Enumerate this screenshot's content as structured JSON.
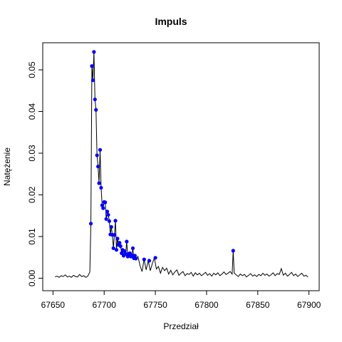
{
  "chart_data": {
    "type": "line",
    "title": "Impuls",
    "x_label": "Przedział",
    "y_label": "Natężenie",
    "xlim": [
      67640,
      67910
    ],
    "ylim": [
      -0.003,
      0.0565
    ],
    "xticks": [
      67650,
      67700,
      67750,
      67800,
      67850,
      67900
    ],
    "yticks": [
      {
        "value": 0,
        "label": "0.00"
      },
      0.01,
      0.02,
      0.03,
      0.04,
      0.05
    ],
    "line": {
      "color": "#000000",
      "x": [
        67652,
        67654,
        67656,
        67658,
        67660,
        67662,
        67664,
        67666,
        67668,
        67670,
        67672,
        67674,
        67676,
        67678,
        67680,
        67682,
        67684,
        67686,
        67687,
        67688,
        67689,
        67690,
        67691,
        67692,
        67693,
        67694,
        67695,
        67696,
        67697,
        67698,
        67699,
        67700,
        67701,
        67702,
        67703,
        67704,
        67705,
        67706,
        67707,
        67708,
        67709,
        67710,
        67711,
        67712,
        67713,
        67714,
        67715,
        67716,
        67717,
        67718,
        67719,
        67720,
        67721,
        67722,
        67723,
        67724,
        67725,
        67726,
        67727,
        67728,
        67729,
        67730,
        67731,
        67733,
        67735,
        67737,
        67739,
        67741,
        67743,
        67745,
        67747,
        67749,
        67751,
        67753,
        67755,
        67757,
        67759,
        67761,
        67763,
        67765,
        67767,
        67769,
        67771,
        67773,
        67775,
        67777,
        67779,
        67781,
        67783,
        67785,
        67787,
        67789,
        67791,
        67793,
        67795,
        67797,
        67799,
        67801,
        67803,
        67805,
        67807,
        67809,
        67811,
        67813,
        67815,
        67817,
        67819,
        67821,
        67823,
        67825,
        67826,
        67827,
        67829,
        67831,
        67833,
        67835,
        67837,
        67839,
        67841,
        67843,
        67845,
        67847,
        67849,
        67851,
        67853,
        67855,
        67857,
        67859,
        67861,
        67863,
        67865,
        67867,
        67869,
        67871,
        67873,
        67875,
        67877,
        67879,
        67881,
        67883,
        67885,
        67887,
        67889,
        67891,
        67893,
        67895,
        67897,
        67899
      ],
      "values": [
        0.0003,
        0.0005,
        0.0002,
        0.0006,
        0.0004,
        0.0008,
        0.0003,
        0.0005,
        0.0002,
        0.0007,
        0.0004,
        0.0003,
        0.0009,
        0.0004,
        0.0006,
        0.0002,
        0.0005,
        0.0015,
        0.0131,
        0.0509,
        0.0475,
        0.0543,
        0.0429,
        0.0404,
        0.0295,
        0.0268,
        0.0228,
        0.0308,
        0.0217,
        0.0175,
        0.0168,
        0.0183,
        0.0182,
        0.0142,
        0.016,
        0.0152,
        0.0137,
        0.0105,
        0.0123,
        0.0104,
        0.0072,
        0.0104,
        0.0138,
        0.0068,
        0.0095,
        0.008,
        0.0085,
        0.0077,
        0.006,
        0.0068,
        0.0054,
        0.0065,
        0.0058,
        0.0088,
        0.0052,
        0.0058,
        0.006,
        0.0052,
        0.0055,
        0.0072,
        0.0048,
        0.0054,
        0.0047,
        0.0052,
        0.003,
        0.0016,
        0.0045,
        0.002,
        0.0042,
        0.0018,
        0.0035,
        0.0049,
        0.0022,
        0.0028,
        0.0012,
        0.0026,
        0.0018,
        0.0024,
        0.001,
        0.0019,
        0.0008,
        0.0015,
        0.002,
        0.0007,
        0.0012,
        0.0016,
        0.0006,
        0.0011,
        0.0009,
        0.0014,
        0.0005,
        0.0013,
        0.0008,
        0.0012,
        0.0006,
        0.001,
        0.0014,
        0.0007,
        0.0011,
        0.0005,
        0.0012,
        0.0008,
        0.0013,
        0.0006,
        0.001,
        0.0015,
        0.0009,
        0.0012,
        0.0016,
        0.001,
        0.0066,
        0.0012,
        0.0008,
        0.0004,
        0.001,
        0.0006,
        0.0009,
        0.0003,
        0.0007,
        0.0011,
        0.0005,
        0.0008,
        0.0004,
        0.0009,
        0.0006,
        0.0012,
        0.0007,
        0.001,
        0.0005,
        0.0008,
        0.0013,
        0.0006,
        0.0011,
        0.0009,
        0.0023,
        0.0007,
        0.0012,
        0.0005,
        0.0009,
        0.0014,
        0.0006,
        0.001,
        0.0004,
        0.0008,
        0.0012,
        0.0005,
        0.0007,
        0.0003
      ]
    },
    "points": {
      "color": "#0000ff",
      "x": [
        67687,
        67688,
        67689,
        67690,
        67691,
        67692,
        67693,
        67694,
        67695,
        67696,
        67697,
        67698,
        67699,
        67700,
        67701,
        67702,
        67703,
        67704,
        67705,
        67706,
        67707,
        67708,
        67709,
        67710,
        67711,
        67712,
        67713,
        67714,
        67715,
        67716,
        67717,
        67718,
        67719,
        67720,
        67721,
        67722,
        67723,
        67724,
        67725,
        67726,
        67727,
        67728,
        67729,
        67730,
        67731,
        67739,
        67744,
        67750,
        67826
      ],
      "values": [
        0.0131,
        0.0509,
        0.0475,
        0.0543,
        0.0429,
        0.0404,
        0.0295,
        0.0268,
        0.0228,
        0.0308,
        0.0217,
        0.0175,
        0.0168,
        0.0183,
        0.0182,
        0.0142,
        0.016,
        0.0152,
        0.0137,
        0.0105,
        0.0123,
        0.0104,
        0.0072,
        0.0104,
        0.0138,
        0.0068,
        0.0095,
        0.008,
        0.0085,
        0.0077,
        0.006,
        0.0068,
        0.0054,
        0.0065,
        0.0058,
        0.0088,
        0.0052,
        0.0058,
        0.006,
        0.0052,
        0.0055,
        0.0072,
        0.0048,
        0.0054,
        0.0047,
        0.0045,
        0.0042,
        0.0049,
        0.0066
      ]
    }
  }
}
